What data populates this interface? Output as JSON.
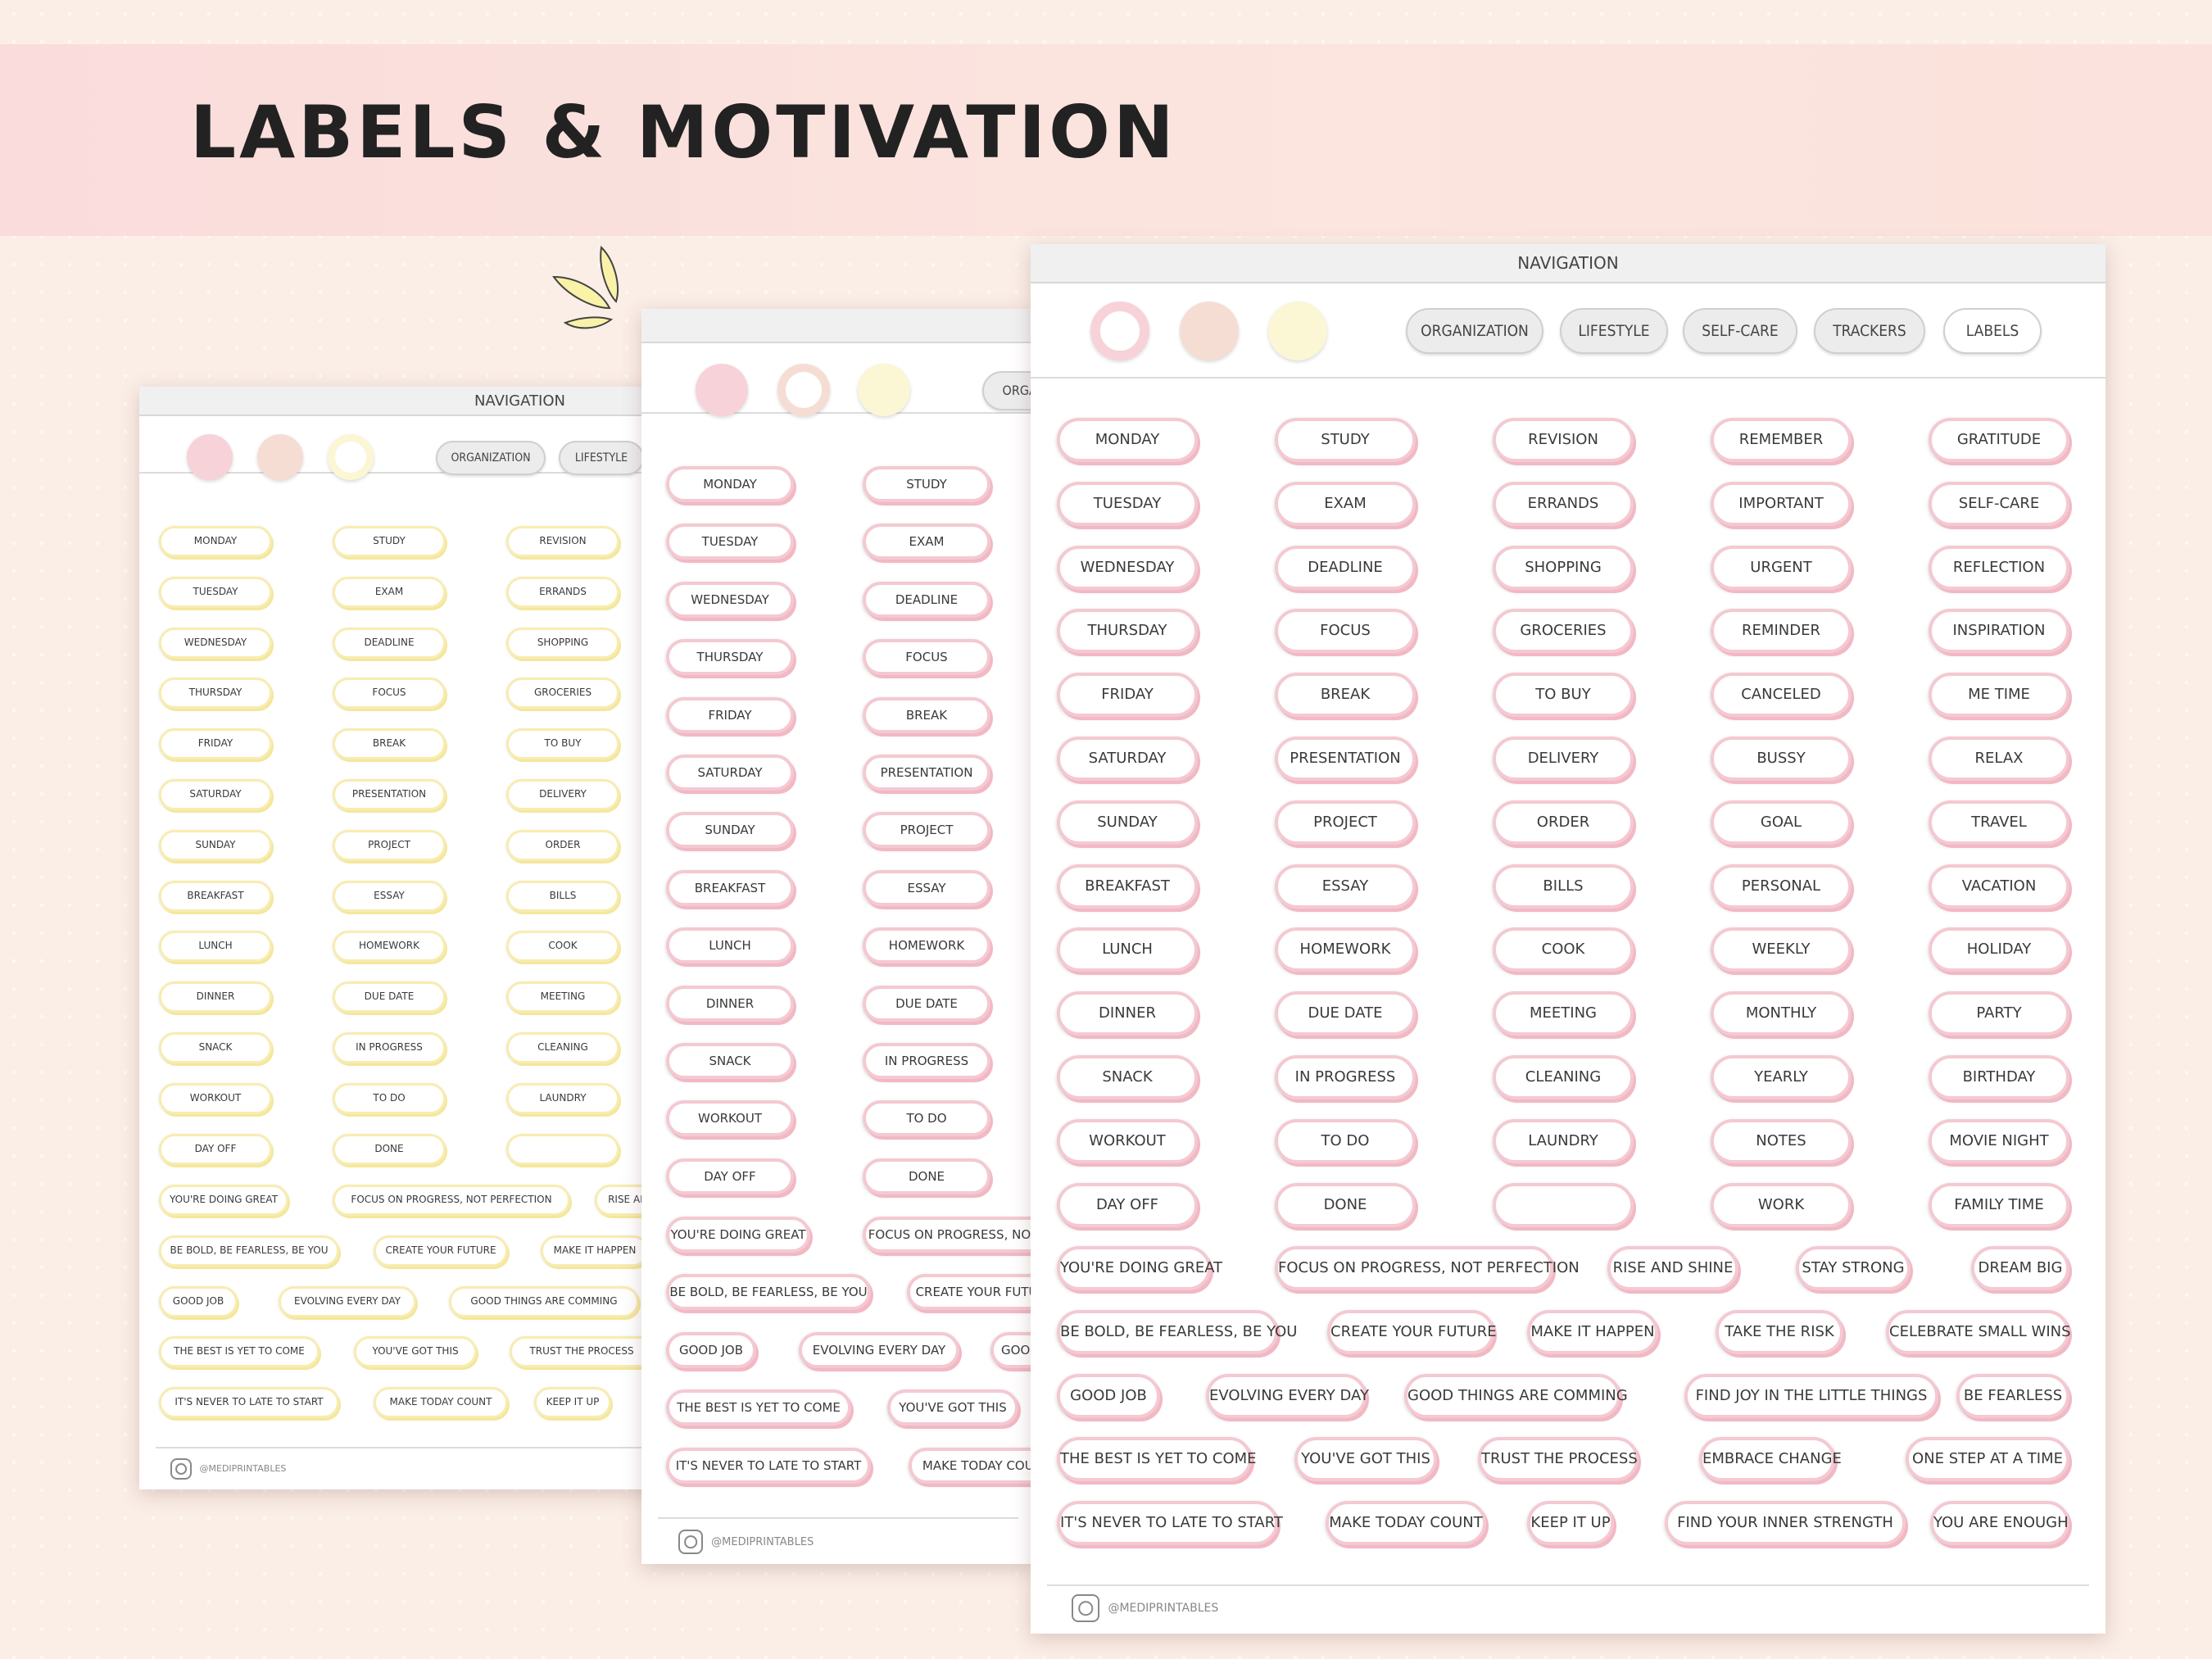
{
  "banner": {
    "title": "LABELS & MOTIVATION"
  },
  "nav": {
    "header": "NAVIGATION",
    "tabs": [
      "ORGANIZATION",
      "LIFESTYLE",
      "SELF-CARE",
      "TRACKERS",
      "LABELS"
    ],
    "circle_colors": [
      "#f7d3d9",
      "#f6ddd4",
      "#fbf6d4"
    ]
  },
  "labels": {
    "columns": [
      [
        "MONDAY",
        "TUESDAY",
        "WEDNESDAY",
        "THURSDAY",
        "FRIDAY",
        "SATURDAY",
        "SUNDAY",
        "BREAKFAST",
        "LUNCH",
        "DINNER",
        "SNACK",
        "WORKOUT",
        "DAY OFF"
      ],
      [
        "STUDY",
        "EXAM",
        "DEADLINE",
        "FOCUS",
        "BREAK",
        "PRESENTATION",
        "PROJECT",
        "ESSAY",
        "HOMEWORK",
        "DUE DATE",
        "IN PROGRESS",
        "TO DO",
        "DONE"
      ],
      [
        "REVISION",
        "ERRANDS",
        "SHOPPING",
        "GROCERIES",
        "TO BUY",
        "DELIVERY",
        "ORDER",
        "BILLS",
        "COOK",
        "MEETING",
        "CLEANING",
        "LAUNDRY",
        ""
      ],
      [
        "REMEMBER",
        "IMPORTANT",
        "URGENT",
        "REMINDER",
        "CANCELED",
        "BUSSY",
        "GOAL",
        "PERSONAL",
        "WEEKLY",
        "MONTHLY",
        "YEARLY",
        "NOTES",
        "WORK"
      ],
      [
        "GRATITUDE",
        "SELF-CARE",
        "REFLECTION",
        "INSPIRATION",
        "ME TIME",
        "RELAX",
        "TRAVEL",
        "VACATION",
        "HOLIDAY",
        "PARTY",
        "BIRTHDAY",
        "MOVIE NIGHT",
        "FAMILY TIME"
      ]
    ],
    "motivation_rows": [
      [
        "YOU'RE DOING GREAT",
        "FOCUS ON PROGRESS, NOT PERFECTION",
        "RISE AND SHINE",
        "STAY STRONG",
        "DREAM BIG"
      ],
      [
        "BE BOLD, BE FEARLESS, BE YOU",
        "CREATE YOUR FUTURE",
        "MAKE IT HAPPEN",
        "TAKE THE RISK",
        "CELEBRATE SMALL WINS"
      ],
      [
        "GOOD JOB",
        "EVOLVING EVERY DAY",
        "GOOD THINGS ARE COMMING",
        "FIND JOY IN THE LITTLE THINGS",
        "BE FEARLESS"
      ],
      [
        "THE BEST IS YET TO COME",
        "YOU'VE GOT THIS",
        "TRUST THE PROCESS",
        "EMBRACE CHANGE",
        "ONE STEP AT A TIME"
      ],
      [
        "IT'S NEVER TO LATE TO START",
        "MAKE TODAY COUNT",
        "KEEP IT UP",
        "FIND YOUR INNER STRENGTH",
        "YOU ARE ENOUGH"
      ]
    ]
  },
  "footer": {
    "handle": "@MEDIPRINTABLES"
  },
  "colors": {
    "pink": "#f4c9d2",
    "yellow": "#f8ecb0",
    "banner": "#fadcdc"
  }
}
